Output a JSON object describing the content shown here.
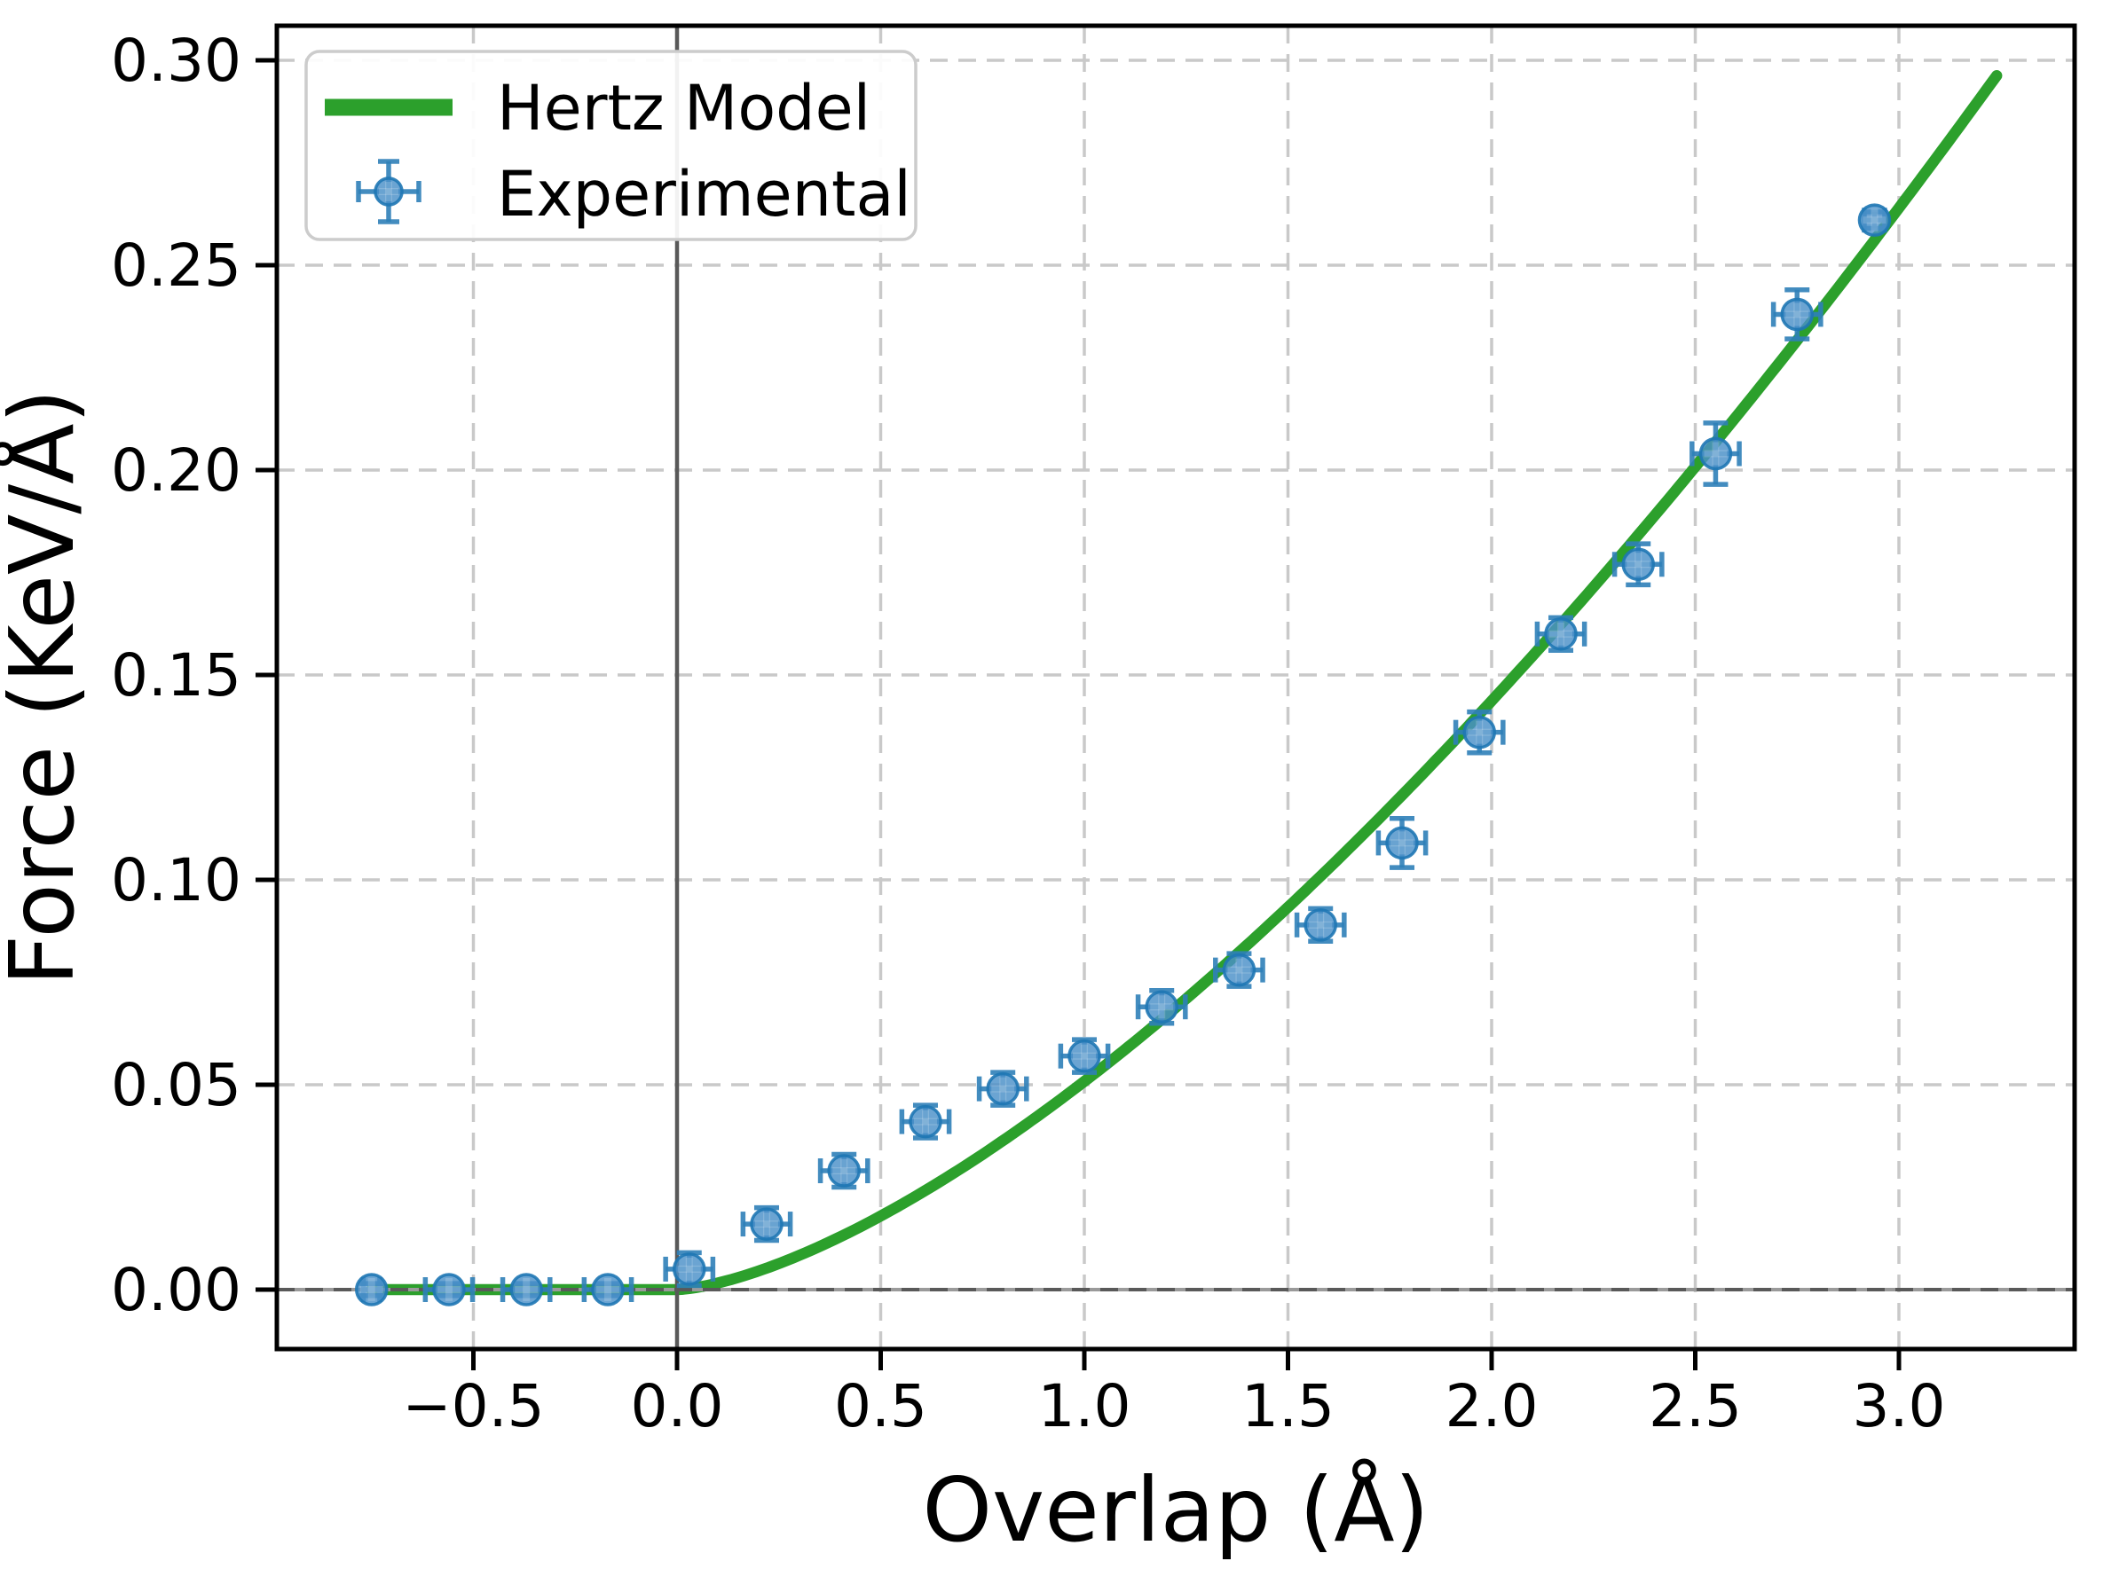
{
  "figure": {
    "background": "#ffffff",
    "colors": {
      "model_line": "#2ca02c",
      "marker_fill": "#4a90c8",
      "marker_edge": "#1f77b4",
      "errorbar": "#2f7fb8",
      "grid": "#c9c9c9",
      "zero_line_dark": "#595959",
      "zero_line_base": "#9a9a9a",
      "spine": "#000000",
      "legend_border": "#cccccc"
    }
  },
  "chart_data": {
    "type": "line+scatter",
    "title": "",
    "xlabel": "Overlap (Å)",
    "ylabel": "Force (KeV/Å)",
    "xlim": [
      -0.98,
      3.44
    ],
    "ylim": [
      -0.0145,
      0.3085
    ],
    "x_ticks": [
      -0.5,
      0.0,
      0.5,
      1.0,
      1.5,
      2.0,
      2.5,
      3.0
    ],
    "y_ticks": [
      0.0,
      0.05,
      0.1,
      0.15,
      0.2,
      0.25,
      0.3
    ],
    "grid": true,
    "grid_style": "dashed",
    "legend_position": "upper left",
    "reference_lines": {
      "vertical_x": 0.0,
      "horizontal_y": 0.0
    },
    "series": [
      {
        "name": "Hertz Model",
        "type": "line",
        "color": "#2ca02c",
        "model": "F = K * max(0, overlap)^1.5",
        "K": 0.0508,
        "x_range": [
          -0.75,
          3.24
        ],
        "sample_points": [
          {
            "x": -0.75,
            "y": 0.0
          },
          {
            "x": 0.0,
            "y": 0.0
          },
          {
            "x": 0.5,
            "y": 0.018
          },
          {
            "x": 1.0,
            "y": 0.051
          },
          {
            "x": 1.5,
            "y": 0.093
          },
          {
            "x": 2.0,
            "y": 0.144
          },
          {
            "x": 2.5,
            "y": 0.201
          },
          {
            "x": 3.0,
            "y": 0.264
          },
          {
            "x": 3.24,
            "y": 0.296
          }
        ]
      },
      {
        "name": "Experimental",
        "type": "scatter-errorbar",
        "color": "#1f77b4",
        "points": [
          {
            "x": -0.75,
            "y": 0.0,
            "xerr": 0.02,
            "yerr": 0.0015
          },
          {
            "x": -0.56,
            "y": 0.0,
            "xerr": 0.058,
            "yerr": 0.0015
          },
          {
            "x": -0.37,
            "y": 0.0,
            "xerr": 0.058,
            "yerr": 0.0015
          },
          {
            "x": -0.17,
            "y": 0.0,
            "xerr": 0.058,
            "yerr": 0.0015
          },
          {
            "x": 0.03,
            "y": 0.005,
            "xerr": 0.058,
            "yerr": 0.004
          },
          {
            "x": 0.22,
            "y": 0.016,
            "xerr": 0.058,
            "yerr": 0.004
          },
          {
            "x": 0.41,
            "y": 0.029,
            "xerr": 0.058,
            "yerr": 0.004
          },
          {
            "x": 0.61,
            "y": 0.041,
            "xerr": 0.058,
            "yerr": 0.004
          },
          {
            "x": 0.8,
            "y": 0.049,
            "xerr": 0.058,
            "yerr": 0.004
          },
          {
            "x": 1.0,
            "y": 0.057,
            "xerr": 0.058,
            "yerr": 0.004
          },
          {
            "x": 1.19,
            "y": 0.069,
            "xerr": 0.058,
            "yerr": 0.004
          },
          {
            "x": 1.38,
            "y": 0.078,
            "xerr": 0.058,
            "yerr": 0.004
          },
          {
            "x": 1.58,
            "y": 0.089,
            "xerr": 0.058,
            "yerr": 0.004
          },
          {
            "x": 1.78,
            "y": 0.109,
            "xerr": 0.058,
            "yerr": 0.006
          },
          {
            "x": 1.97,
            "y": 0.136,
            "xerr": 0.058,
            "yerr": 0.005
          },
          {
            "x": 2.17,
            "y": 0.16,
            "xerr": 0.058,
            "yerr": 0.004
          },
          {
            "x": 2.36,
            "y": 0.177,
            "xerr": 0.058,
            "yerr": 0.005
          },
          {
            "x": 2.55,
            "y": 0.204,
            "xerr": 0.058,
            "yerr": 0.0075
          },
          {
            "x": 2.75,
            "y": 0.238,
            "xerr": 0.058,
            "yerr": 0.006
          },
          {
            "x": 2.94,
            "y": 0.261,
            "xerr": 0.025,
            "yerr": 0.002
          }
        ]
      }
    ]
  }
}
